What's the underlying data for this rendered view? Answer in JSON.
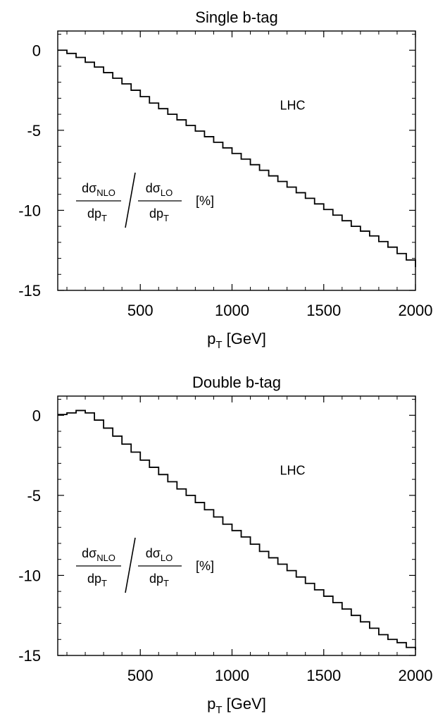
{
  "chart_data": [
    {
      "type": "line",
      "style": "step",
      "title": "Single b-tag",
      "xlabel": "p_T [GeV]",
      "ylabel": "",
      "xlim": [
        50,
        2000
      ],
      "ylim": [
        -15,
        1.2
      ],
      "xticks": [
        500,
        1000,
        1500,
        2000
      ],
      "yticks": [
        0,
        -5,
        -10,
        -15
      ],
      "xtick_labels": [
        "500",
        "1000",
        "1500",
        "2000"
      ],
      "ytick_labels": [
        "0",
        "-5",
        "-10",
        "-15"
      ],
      "grid": false,
      "annotation": "LHC",
      "ratio_label": {
        "numerator": "dσ",
        "numerator_sub": "NLO",
        "denominator": "dp",
        "denominator_sub": "T",
        "numerator2": "dσ",
        "numerator2_sub": "LO",
        "denominator2": "dp",
        "denominator2_sub": "T",
        "unit": "[%]"
      },
      "series": [
        {
          "x": [
            50,
            100,
            150,
            200,
            250,
            300,
            350,
            400,
            450,
            500,
            550,
            600,
            650,
            700,
            750,
            800,
            850,
            900,
            950,
            1000,
            1050,
            1100,
            1150,
            1200,
            1250,
            1300,
            1350,
            1400,
            1450,
            1500,
            1550,
            1600,
            1650,
            1700,
            1750,
            1800,
            1850,
            1900,
            1950,
            2000
          ],
          "values": [
            0.0,
            -0.2,
            -0.45,
            -0.75,
            -1.05,
            -1.4,
            -1.75,
            -2.1,
            -2.5,
            -2.9,
            -3.3,
            -3.65,
            -4.0,
            -4.35,
            -4.7,
            -5.05,
            -5.4,
            -5.75,
            -6.1,
            -6.45,
            -6.8,
            -7.15,
            -7.5,
            -7.85,
            -8.2,
            -8.55,
            -8.9,
            -9.25,
            -9.6,
            -9.95,
            -10.3,
            -10.65,
            -11.0,
            -11.3,
            -11.6,
            -11.95,
            -12.3,
            -12.7,
            -13.1,
            -13.55
          ]
        }
      ]
    },
    {
      "type": "line",
      "style": "step",
      "title": "Double b-tag",
      "xlabel": "p_T [GeV]",
      "ylabel": "",
      "xlim": [
        50,
        2000
      ],
      "ylim": [
        -15,
        1.2
      ],
      "xticks": [
        500,
        1000,
        1500,
        2000
      ],
      "yticks": [
        0,
        -5,
        -10,
        -15
      ],
      "xtick_labels": [
        "500",
        "1000",
        "1500",
        "2000"
      ],
      "ytick_labels": [
        "0",
        "-5",
        "-10",
        "-15"
      ],
      "grid": false,
      "annotation": "LHC",
      "ratio_label": {
        "numerator": "dσ",
        "numerator_sub": "NLO",
        "denominator": "dp",
        "denominator_sub": "T",
        "numerator2": "dσ",
        "numerator2_sub": "LO",
        "denominator2": "dp",
        "denominator2_sub": "T",
        "unit": "[%]"
      },
      "series": [
        {
          "x": [
            50,
            100,
            150,
            200,
            250,
            300,
            350,
            400,
            450,
            500,
            550,
            600,
            650,
            700,
            750,
            800,
            850,
            900,
            950,
            1000,
            1050,
            1100,
            1150,
            1200,
            1250,
            1300,
            1350,
            1400,
            1450,
            1500,
            1550,
            1600,
            1650,
            1700,
            1750,
            1800,
            1850,
            1900,
            1950,
            2000
          ],
          "values": [
            0.05,
            0.15,
            0.3,
            0.15,
            -0.3,
            -0.8,
            -1.3,
            -1.8,
            -2.3,
            -2.8,
            -3.25,
            -3.7,
            -4.15,
            -4.6,
            -5.0,
            -5.45,
            -5.9,
            -6.35,
            -6.8,
            -7.2,
            -7.6,
            -8.05,
            -8.5,
            -8.9,
            -9.3,
            -9.7,
            -10.1,
            -10.5,
            -10.9,
            -11.3,
            -11.7,
            -12.1,
            -12.5,
            -12.9,
            -13.3,
            -13.7,
            -14.0,
            -14.2,
            -14.5,
            -14.65
          ]
        }
      ]
    }
  ]
}
